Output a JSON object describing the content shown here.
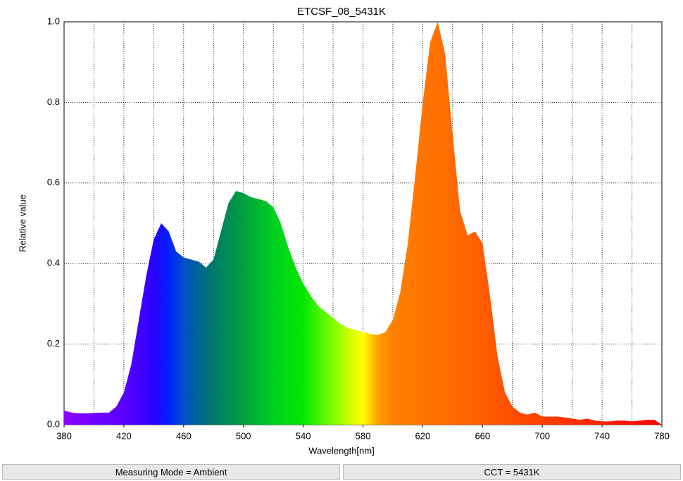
{
  "chart_data": {
    "type": "area",
    "title": "ETCSF_08_5431K",
    "x_label": "Wavelength[nm]",
    "y_label": "Relative value",
    "x": [
      380,
      385,
      390,
      395,
      400,
      405,
      410,
      415,
      420,
      425,
      430,
      435,
      440,
      445,
      450,
      455,
      460,
      465,
      470,
      475,
      480,
      485,
      490,
      495,
      500,
      505,
      510,
      515,
      520,
      525,
      530,
      535,
      540,
      545,
      550,
      555,
      560,
      565,
      570,
      575,
      580,
      585,
      590,
      595,
      600,
      605,
      610,
      615,
      620,
      625,
      630,
      635,
      640,
      645,
      650,
      655,
      660,
      665,
      670,
      675,
      680,
      685,
      690,
      695,
      700,
      705,
      710,
      715,
      720,
      725,
      730,
      735,
      740,
      745,
      750,
      755,
      760,
      765,
      770,
      775,
      780
    ],
    "values": [
      0.035,
      0.03,
      0.028,
      0.028,
      0.029,
      0.03,
      0.03,
      0.045,
      0.08,
      0.15,
      0.26,
      0.37,
      0.46,
      0.5,
      0.48,
      0.43,
      0.415,
      0.41,
      0.405,
      0.39,
      0.41,
      0.48,
      0.55,
      0.58,
      0.575,
      0.565,
      0.56,
      0.555,
      0.54,
      0.5,
      0.44,
      0.39,
      0.35,
      0.32,
      0.295,
      0.28,
      0.265,
      0.25,
      0.24,
      0.235,
      0.23,
      0.225,
      0.223,
      0.23,
      0.26,
      0.33,
      0.45,
      0.62,
      0.8,
      0.95,
      1.0,
      0.92,
      0.72,
      0.53,
      0.47,
      0.48,
      0.45,
      0.32,
      0.17,
      0.08,
      0.045,
      0.03,
      0.025,
      0.03,
      0.02,
      0.02,
      0.02,
      0.018,
      0.015,
      0.012,
      0.015,
      0.01,
      0.008,
      0.008,
      0.01,
      0.01,
      0.008,
      0.01,
      0.012,
      0.012,
      0.0
    ],
    "xlim": [
      380,
      780
    ],
    "xticks": [
      380,
      420,
      460,
      500,
      540,
      580,
      620,
      660,
      700,
      740,
      780
    ],
    "xgrid": [
      400,
      420,
      440,
      460,
      480,
      500,
      520,
      540,
      560,
      580,
      600,
      620,
      640,
      660,
      680,
      700,
      720,
      740,
      760
    ],
    "ylim": [
      0,
      1
    ],
    "yticks": [
      {
        "value": 0,
        "label": "0.0"
      },
      0.2,
      0.4,
      0.6,
      0.8,
      {
        "value": 1,
        "label": "1.0"
      }
    ],
    "grid": true
  },
  "footer": {
    "mode": "Measuring Mode = Ambient",
    "cct": "CCT = 5431K"
  }
}
